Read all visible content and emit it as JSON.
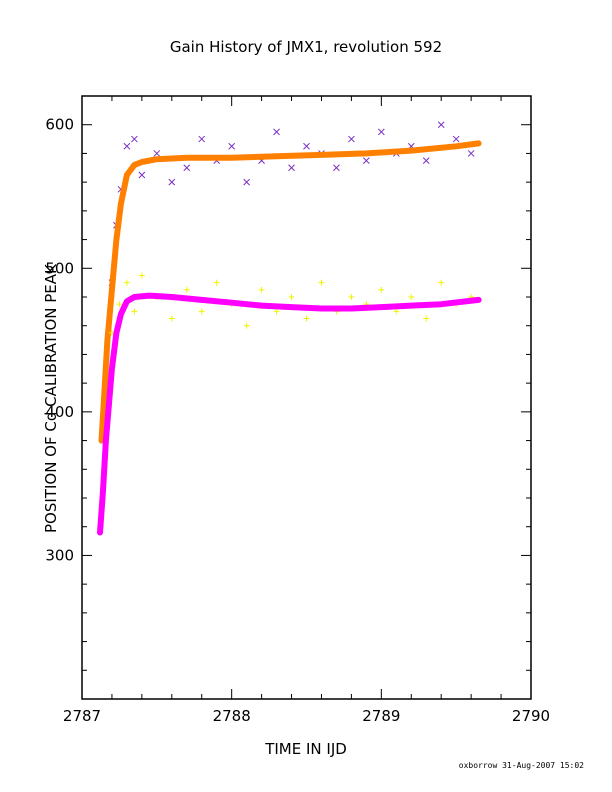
{
  "chart_data": {
    "type": "scatter",
    "title": "Gain History of JMX1, revolution 592",
    "xlabel": "TIME IN IJD",
    "ylabel": "POSITION OF Cd CALIBRATION PEAK",
    "xlim": [
      2787,
      2790
    ],
    "ylim": [
      200,
      620
    ],
    "x_ticks": [
      2787,
      2788,
      2789,
      2790
    ],
    "y_ticks": [
      300,
      400,
      500,
      600
    ],
    "grid": false,
    "legend": "none",
    "series": [
      {
        "marker": "x",
        "color": "#7a2fc4",
        "x": [
          2787.2,
          2787.23,
          2787.26,
          2787.3,
          2787.35,
          2787.4,
          2787.5,
          2787.6,
          2787.7,
          2787.8,
          2787.9,
          2788.0,
          2788.1,
          2788.2,
          2788.3,
          2788.4,
          2788.5,
          2788.6,
          2788.7,
          2788.8,
          2788.9,
          2789.0,
          2789.1,
          2789.2,
          2789.3,
          2789.4,
          2789.5,
          2789.6
        ],
        "y": [
          490,
          530,
          555,
          585,
          590,
          565,
          580,
          560,
          570,
          590,
          575,
          585,
          560,
          575,
          595,
          570,
          585,
          580,
          570,
          590,
          575,
          595,
          580,
          585,
          575,
          600,
          590,
          580
        ]
      },
      {
        "marker": "line",
        "color": "#ff8000",
        "x": [
          2787.13,
          2787.15,
          2787.17,
          2787.2,
          2787.23,
          2787.26,
          2787.3,
          2787.35,
          2787.4,
          2787.5,
          2787.7,
          2788.0,
          2788.3,
          2788.6,
          2788.9,
          2789.2,
          2789.5,
          2789.65
        ],
        "y": [
          380,
          415,
          450,
          485,
          520,
          545,
          565,
          572,
          574,
          576,
          577,
          577,
          578,
          579,
          580,
          582,
          585,
          587
        ]
      },
      {
        "marker": "+",
        "color": "#f2f200",
        "x": [
          2787.2,
          2787.25,
          2787.3,
          2787.35,
          2787.4,
          2787.5,
          2787.6,
          2787.7,
          2787.8,
          2787.9,
          2788.0,
          2788.1,
          2788.2,
          2788.3,
          2788.4,
          2788.5,
          2788.6,
          2788.7,
          2788.8,
          2788.9,
          2789.0,
          2789.1,
          2789.2,
          2789.3,
          2789.4,
          2789.5,
          2789.6
        ],
        "y": [
          455,
          475,
          490,
          470,
          495,
          480,
          465,
          485,
          470,
          490,
          475,
          460,
          485,
          470,
          480,
          465,
          490,
          470,
          480,
          475,
          485,
          470,
          480,
          465,
          490,
          475,
          480
        ]
      },
      {
        "marker": "line",
        "color": "#ff00ff",
        "x": [
          2787.12,
          2787.14,
          2787.16,
          2787.18,
          2787.2,
          2787.23,
          2787.26,
          2787.3,
          2787.35,
          2787.45,
          2787.6,
          2787.8,
          2788.0,
          2788.2,
          2788.4,
          2788.6,
          2788.8,
          2789.0,
          2789.2,
          2789.4,
          2789.65
        ],
        "y": [
          316,
          345,
          380,
          405,
          430,
          455,
          468,
          477,
          480,
          481,
          480,
          478,
          476,
          474,
          473,
          472,
          472,
          473,
          474,
          475,
          478
        ]
      }
    ]
  },
  "credit": "oxborrow 31-Aug-2007 15:02"
}
